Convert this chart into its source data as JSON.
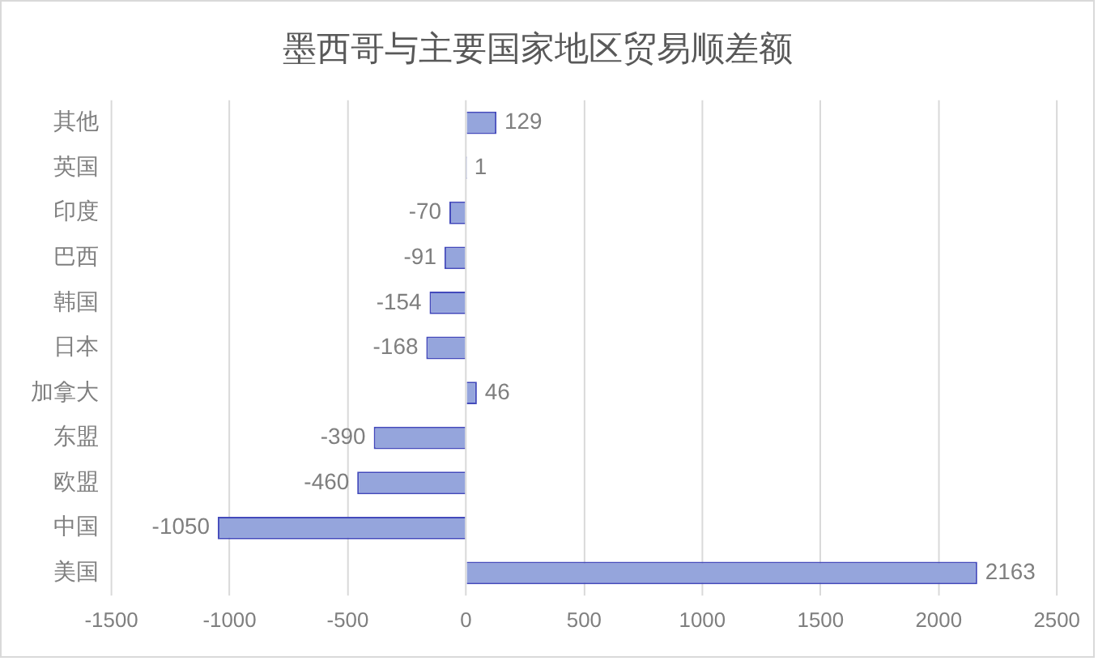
{
  "chart_data": {
    "type": "bar",
    "orientation": "horizontal",
    "title": "墨西哥与主要国家地区贸易顺差额",
    "categories": [
      "其他",
      "英国",
      "印度",
      "巴西",
      "韩国",
      "日本",
      "加拿大",
      "东盟",
      "欧盟",
      "中国",
      "美国"
    ],
    "values": [
      129,
      1,
      -70,
      -91,
      -154,
      -168,
      46,
      -390,
      -460,
      -1050,
      2163
    ],
    "color": "#95a5dc",
    "xlim": [
      -1500,
      2500
    ],
    "xticks": [
      -1500,
      -1000,
      -500,
      0,
      500,
      1000,
      1500,
      2000,
      2500
    ],
    "grid": "x",
    "data_labels": true
  }
}
